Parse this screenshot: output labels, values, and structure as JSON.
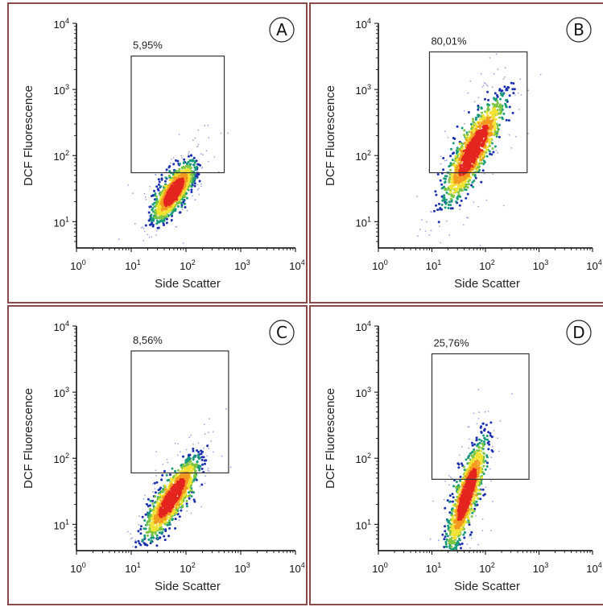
{
  "chart_data": [
    {
      "type": "scatter",
      "panel_label": "A",
      "xlabel": "Side Scatter",
      "ylabel": "DCF Fluorescence",
      "xscale": "log",
      "yscale": "log",
      "xlim": [
        1,
        10000
      ],
      "ylim": [
        4,
        10000
      ],
      "x_ticks": [
        "10^0",
        "10^1",
        "10^2",
        "10^3",
        "10^4"
      ],
      "y_ticks": [
        "10^1",
        "10^2",
        "10^3",
        "10^4"
      ],
      "gate": {
        "label": "5,95%",
        "x": [
          10,
          500
        ],
        "y": [
          55,
          3200
        ]
      },
      "population": {
        "center_x": 60,
        "center_y": 28,
        "log_spread_major": 0.26,
        "log_spread_minor": 0.09,
        "slope": 1.2,
        "density": "high"
      }
    },
    {
      "type": "scatter",
      "panel_label": "B",
      "xlabel": "Side Scatter",
      "ylabel": "DCF Fluorescence",
      "xscale": "log",
      "yscale": "log",
      "xlim": [
        1,
        10000
      ],
      "ylim": [
        4,
        10000
      ],
      "x_ticks": [
        "10^0",
        "10^1",
        "10^2",
        "10^3",
        "10^4"
      ],
      "y_ticks": [
        "10^1",
        "10^2",
        "10^3",
        "10^4"
      ],
      "gate": {
        "label": "80,01%",
        "x": [
          9,
          600
        ],
        "y": [
          55,
          3700
        ]
      },
      "population": {
        "center_x": 60,
        "center_y": 120,
        "log_spread_major": 0.45,
        "log_spread_minor": 0.12,
        "slope": 1.5,
        "density": "high"
      }
    },
    {
      "type": "scatter",
      "panel_label": "C",
      "xlabel": "Side Scatter",
      "ylabel": "DCF Fluorescence",
      "xscale": "log",
      "yscale": "log",
      "xlim": [
        1,
        10000
      ],
      "ylim": [
        4,
        10000
      ],
      "x_ticks": [
        "10^0",
        "10^1",
        "10^2",
        "10^3",
        "10^4"
      ],
      "y_ticks": [
        "10^1",
        "10^2",
        "10^3",
        "10^4"
      ],
      "gate": {
        "label": "8,56%",
        "x": [
          10,
          600
        ],
        "y": [
          60,
          4200
        ]
      },
      "population": {
        "center_x": 55,
        "center_y": 25,
        "log_spread_major": 0.36,
        "log_spread_minor": 0.1,
        "slope": 1.3,
        "density": "high"
      }
    },
    {
      "type": "scatter",
      "panel_label": "D",
      "xlabel": "Side Scatter",
      "ylabel": "DCF Fluorescence",
      "xscale": "log",
      "yscale": "log",
      "xlim": [
        1,
        10000
      ],
      "ylim": [
        4,
        10000
      ],
      "x_ticks": [
        "10^0",
        "10^1",
        "10^2",
        "10^3",
        "10^4"
      ],
      "y_ticks": [
        "10^1",
        "10^2",
        "10^3",
        "10^4"
      ],
      "gate": {
        "label": "25,76%",
        "x": [
          10,
          650
        ],
        "y": [
          48,
          3800
        ]
      },
      "population": {
        "center_x": 45,
        "center_y": 28,
        "log_spread_major": 0.42,
        "log_spread_minor": 0.09,
        "slope": 2.6,
        "density": "high"
      }
    }
  ],
  "colors": {
    "panel_border": "#8b4a4a",
    "sparse": "#9fa6de",
    "low": "#1c2fae",
    "mid_low": "#1b9a7a",
    "mid": "#7dc540",
    "mid_high": "#f1e233",
    "high": "#f39b1f",
    "peak": "#e4251f"
  }
}
